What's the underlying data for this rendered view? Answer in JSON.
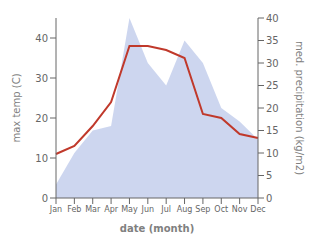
{
  "chart_data": {
    "type": "line",
    "title": "",
    "xlabel": "date (month)",
    "ylabel": "max temp (C)",
    "y2label": "med. precipitation (kg/m2)",
    "categories": [
      "Jan",
      "Feb",
      "Mar",
      "Apr",
      "May",
      "Jun",
      "Jul",
      "Aug",
      "Sep",
      "Oct",
      "Nov",
      "Dec"
    ],
    "series": [
      {
        "type": "area",
        "axis": "y2",
        "color": "#b8c4e8",
        "values": [
          3,
          10,
          15,
          16,
          40,
          30,
          25,
          35,
          30,
          20,
          17,
          13
        ]
      },
      {
        "type": "line",
        "color": "#c0392b",
        "values": [
          11,
          13,
          18,
          24,
          38,
          38,
          37,
          35,
          21,
          20,
          16,
          15
        ]
      }
    ],
    "ylim": [
      0,
      45
    ],
    "yticks": [
      0,
      10,
      20,
      30,
      40
    ],
    "y2lim": [
      0,
      40
    ],
    "y2ticks": [
      0,
      5,
      10,
      15,
      20,
      25,
      30,
      35,
      40
    ],
    "grid": false
  }
}
